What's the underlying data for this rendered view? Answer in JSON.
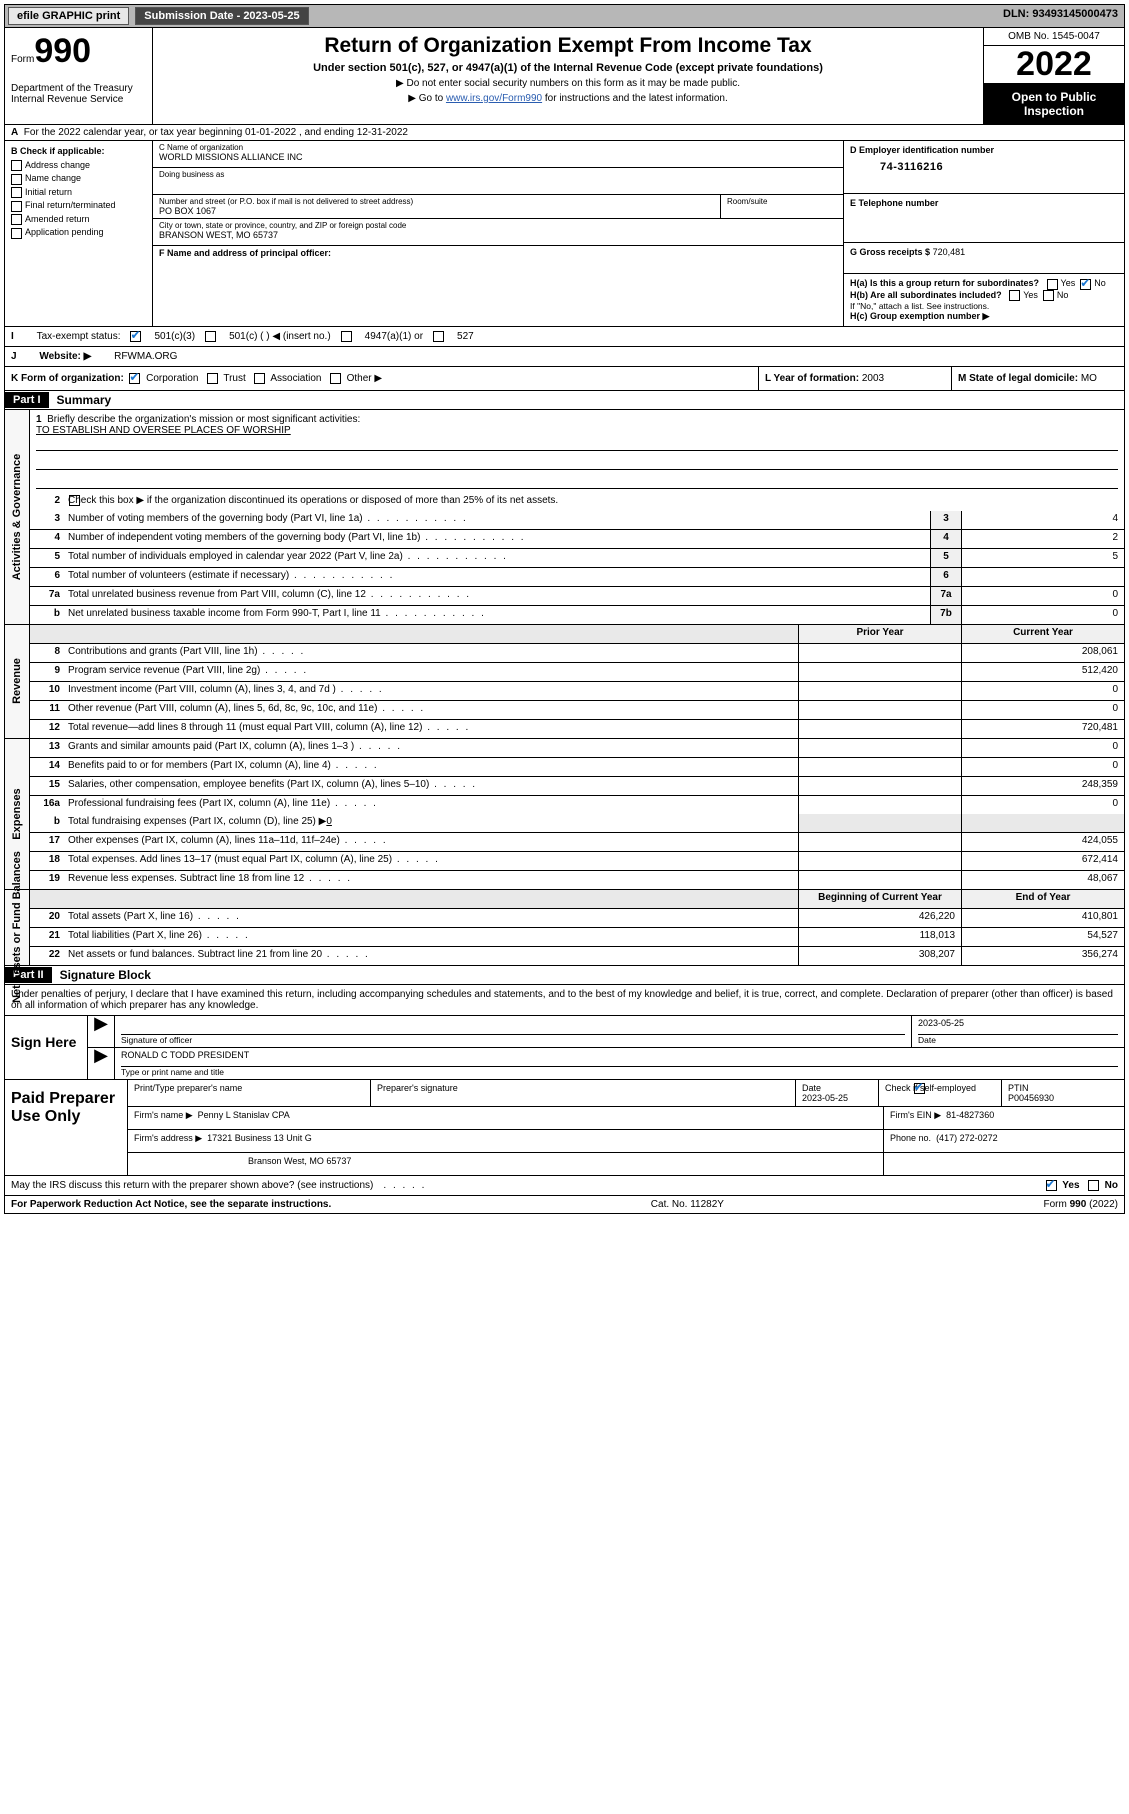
{
  "topbar": {
    "efile": "efile GRAPHIC print",
    "submission": "Submission Date - 2023-05-25",
    "dln": "DLN: 93493145000473"
  },
  "header": {
    "form_prefix": "Form",
    "form_number": "990",
    "title": "Return of Organization Exempt From Income Tax",
    "subtitle": "Under section 501(c), 527, or 4947(a)(1) of the Internal Revenue Code (except private foundations)",
    "note1": "Do not enter social security numbers on this form as it may be made public.",
    "note2_pre": "Go to ",
    "note2_link": "www.irs.gov/Form990",
    "note2_post": " for instructions and the latest information.",
    "dept1": "Department of the Treasury",
    "dept2": "Internal Revenue Service",
    "omb": "OMB No. 1545-0047",
    "year": "2022",
    "open": "Open to Public Inspection"
  },
  "rowA": "For the 2022 calendar year, or tax year beginning 01-01-2022   , and ending 12-31-2022",
  "B": {
    "label": "B Check if applicable:",
    "items": [
      "Address change",
      "Name change",
      "Initial return",
      "Final return/terminated",
      "Amended return",
      "Application pending"
    ]
  },
  "C": {
    "name_label": "C Name of organization",
    "name": "WORLD MISSIONS ALLIANCE INC",
    "dba_label": "Doing business as",
    "street_label": "Number and street (or P.O. box if mail is not delivered to street address)",
    "room_label": "Room/suite",
    "street": "PO BOX 1067",
    "city_label": "City or town, state or province, country, and ZIP or foreign postal code",
    "city": "BRANSON WEST, MO  65737"
  },
  "D": {
    "label": "D Employer identification number",
    "ein": "74-3116216"
  },
  "E": {
    "label": "E Telephone number"
  },
  "F": {
    "label": "F  Name and address of principal officer:"
  },
  "G": {
    "label": "G Gross receipts $",
    "val": "720,481"
  },
  "H": {
    "a": "H(a)  Is this a group return for subordinates?",
    "b": "H(b)  Are all subordinates included?",
    "note": "If \"No,\" attach a list. See instructions.",
    "c": "H(c)  Group exemption number ▶",
    "yes": "Yes",
    "no": "No"
  },
  "I": {
    "label": "Tax-exempt status:",
    "o1": "501(c)(3)",
    "o2": "501(c) (  ) ◀ (insert no.)",
    "o3": "4947(a)(1) or",
    "o4": "527"
  },
  "J": {
    "label": "Website: ▶",
    "val": "RFWMA.ORG"
  },
  "K": {
    "label": "K Form of organization:",
    "o1": "Corporation",
    "o2": "Trust",
    "o3": "Association",
    "o4": "Other ▶"
  },
  "L": {
    "label": "L Year of formation:",
    "val": "2003"
  },
  "M": {
    "label": "M State of legal domicile:",
    "val": "MO"
  },
  "partI": {
    "tag": "Part I",
    "title": "Summary",
    "side1": "Activities & Governance",
    "side2": "Revenue",
    "side3": "Expenses",
    "side4": "Net Assets or Fund Balances",
    "l1_label": "Briefly describe the organization's mission or most significant activities:",
    "l1_val": "TO ESTABLISH AND OVERSEE PLACES OF WORSHIP",
    "l2": "Check this box ▶        if the organization discontinued its operations or disposed of more than 25% of its net assets.",
    "lines_gov": [
      {
        "n": "3",
        "d": "Number of voting members of the governing body (Part VI, line 1a)",
        "box": "3",
        "v": "4"
      },
      {
        "n": "4",
        "d": "Number of independent voting members of the governing body (Part VI, line 1b)",
        "box": "4",
        "v": "2"
      },
      {
        "n": "5",
        "d": "Total number of individuals employed in calendar year 2022 (Part V, line 2a)",
        "box": "5",
        "v": "5"
      },
      {
        "n": "6",
        "d": "Total number of volunteers (estimate if necessary)",
        "box": "6",
        "v": ""
      },
      {
        "n": "7a",
        "d": "Total unrelated business revenue from Part VIII, column (C), line 12",
        "box": "7a",
        "v": "0"
      },
      {
        "n": "b",
        "d": "Net unrelated business taxable income from Form 990-T, Part I, line 11",
        "box": "7b",
        "v": "0"
      }
    ],
    "col_prior": "Prior Year",
    "col_current": "Current Year",
    "col_boy": "Beginning of Current Year",
    "col_eoy": "End of Year",
    "lines_rev": [
      {
        "n": "8",
        "d": "Contributions and grants (Part VIII, line 1h)",
        "p": "",
        "c": "208,061"
      },
      {
        "n": "9",
        "d": "Program service revenue (Part VIII, line 2g)",
        "p": "",
        "c": "512,420"
      },
      {
        "n": "10",
        "d": "Investment income (Part VIII, column (A), lines 3, 4, and 7d )",
        "p": "",
        "c": "0"
      },
      {
        "n": "11",
        "d": "Other revenue (Part VIII, column (A), lines 5, 6d, 8c, 9c, 10c, and 11e)",
        "p": "",
        "c": "0"
      },
      {
        "n": "12",
        "d": "Total revenue—add lines 8 through 11 (must equal Part VIII, column (A), line 12)",
        "p": "",
        "c": "720,481"
      }
    ],
    "lines_exp": [
      {
        "n": "13",
        "d": "Grants and similar amounts paid (Part IX, column (A), lines 1–3 )",
        "p": "",
        "c": "0"
      },
      {
        "n": "14",
        "d": "Benefits paid to or for members (Part IX, column (A), line 4)",
        "p": "",
        "c": "0"
      },
      {
        "n": "15",
        "d": "Salaries, other compensation, employee benefits (Part IX, column (A), lines 5–10)",
        "p": "",
        "c": "248,359"
      },
      {
        "n": "16a",
        "d": "Professional fundraising fees (Part IX, column (A), line 11e)",
        "p": "",
        "c": "0"
      }
    ],
    "l16b_pre": "Total fundraising expenses (Part IX, column (D), line 25) ▶",
    "l16b_val": "0",
    "lines_exp2": [
      {
        "n": "17",
        "d": "Other expenses (Part IX, column (A), lines 11a–11d, 11f–24e)",
        "p": "",
        "c": "424,055"
      },
      {
        "n": "18",
        "d": "Total expenses. Add lines 13–17 (must equal Part IX, column (A), line 25)",
        "p": "",
        "c": "672,414"
      },
      {
        "n": "19",
        "d": "Revenue less expenses. Subtract line 18 from line 12",
        "p": "",
        "c": "48,067"
      }
    ],
    "lines_na": [
      {
        "n": "20",
        "d": "Total assets (Part X, line 16)",
        "p": "426,220",
        "c": "410,801"
      },
      {
        "n": "21",
        "d": "Total liabilities (Part X, line 26)",
        "p": "118,013",
        "c": "54,527"
      },
      {
        "n": "22",
        "d": "Net assets or fund balances. Subtract line 21 from line 20",
        "p": "308,207",
        "c": "356,274"
      }
    ]
  },
  "partII": {
    "tag": "Part II",
    "title": "Signature Block",
    "decl": "Under penalties of perjury, I declare that I have examined this return, including accompanying schedules and statements, and to the best of my knowledge and belief, it is true, correct, and complete. Declaration of preparer (other than officer) is based on all information of which preparer has any knowledge."
  },
  "sign": {
    "here": "Sign Here",
    "sig_label": "Signature of officer",
    "date_label": "Date",
    "date": "2023-05-25",
    "name": "RONALD C TODD  PRESIDENT",
    "name_label": "Type or print name and title"
  },
  "paid": {
    "title": "Paid Preparer Use Only",
    "h1": "Print/Type preparer's name",
    "h2": "Preparer's signature",
    "h3": "Date",
    "h3v": "2023-05-25",
    "h4": "Check         if self-employed",
    "h5": "PTIN",
    "h5v": "P00456930",
    "firm_label": "Firm's name    ▶",
    "firm": "Penny L Stanislav CPA",
    "ein_label": "Firm's EIN ▶",
    "ein": "81-4827360",
    "addr_label": "Firm's address ▶",
    "addr1": "17321 Business 13 Unit G",
    "addr2": "Branson West, MO  65737",
    "phone_label": "Phone no.",
    "phone": "(417) 272-0272"
  },
  "discuss": {
    "q": "May the IRS discuss this return with the preparer shown above? (see instructions)",
    "yes": "Yes",
    "no": "No"
  },
  "footer": {
    "left": "For Paperwork Reduction Act Notice, see the separate instructions.",
    "mid": "Cat. No. 11282Y",
    "right_pre": "Form ",
    "right_b": "990",
    "right_post": " (2022)"
  },
  "rowA_label": "A"
}
